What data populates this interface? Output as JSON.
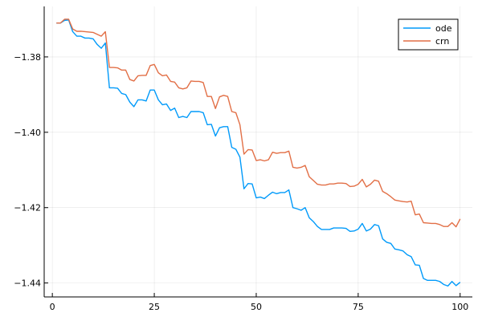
{
  "chart_data": {
    "type": "line",
    "title": "",
    "xlabel": "",
    "ylabel": "",
    "xlim": [
      -2,
      103
    ],
    "ylim": [
      -1.4437,
      -1.3666
    ],
    "grid": true,
    "legend_position": "top-right",
    "x_ticks": [
      {
        "value": 0,
        "label": "0"
      },
      {
        "value": 25,
        "label": "25"
      },
      {
        "value": 50,
        "label": "50"
      },
      {
        "value": 75,
        "label": "75"
      },
      {
        "value": 100,
        "label": "100"
      }
    ],
    "y_ticks": [
      {
        "value": -1.38,
        "label": "−1.38"
      },
      {
        "value": -1.4,
        "label": "−1.40"
      },
      {
        "value": -1.42,
        "label": "−1.42"
      },
      {
        "value": -1.44,
        "label": "−1.44"
      }
    ],
    "x": [
      1,
      2,
      3,
      4,
      5,
      6,
      7,
      8,
      9,
      10,
      11,
      12,
      13,
      14,
      15,
      16,
      17,
      18,
      19,
      20,
      21,
      22,
      23,
      24,
      25,
      26,
      27,
      28,
      29,
      30,
      31,
      32,
      33,
      34,
      35,
      36,
      37,
      38,
      39,
      40,
      41,
      42,
      43,
      44,
      45,
      46,
      47,
      48,
      49,
      50,
      51,
      52,
      53,
      54,
      55,
      56,
      57,
      58,
      59,
      60,
      61,
      62,
      63,
      64,
      65,
      66,
      67,
      68,
      69,
      70,
      71,
      72,
      73,
      74,
      75,
      76,
      77,
      78,
      79,
      80,
      81,
      82,
      83,
      84,
      85,
      86,
      87,
      88,
      89,
      90,
      91,
      92,
      93,
      94,
      95,
      96,
      97,
      98,
      99,
      100
    ],
    "series": [
      {
        "name": "ode",
        "color": "#009AFA",
        "values": [
          -1.371,
          -1.371,
          -1.3703,
          -1.3702,
          -1.3733,
          -1.3745,
          -1.3745,
          -1.375,
          -1.375,
          -1.3752,
          -1.3767,
          -1.3777,
          -1.3763,
          -1.3882,
          -1.3882,
          -1.3883,
          -1.3897,
          -1.39,
          -1.392,
          -1.3932,
          -1.3914,
          -1.3914,
          -1.3917,
          -1.3888,
          -1.3888,
          -1.3914,
          -1.3927,
          -1.3925,
          -1.3942,
          -1.3936,
          -1.3961,
          -1.3958,
          -1.3961,
          -1.3945,
          -1.3945,
          -1.3945,
          -1.3948,
          -1.398,
          -1.3979,
          -1.401,
          -1.3988,
          -1.3985,
          -1.3985,
          -1.404,
          -1.4045,
          -1.4066,
          -1.415,
          -1.4136,
          -1.4137,
          -1.4174,
          -1.4172,
          -1.4176,
          -1.4167,
          -1.4159,
          -1.4163,
          -1.416,
          -1.416,
          -1.4153,
          -1.42,
          -1.4203,
          -1.4207,
          -1.42,
          -1.4227,
          -1.4237,
          -1.425,
          -1.4258,
          -1.4258,
          -1.4258,
          -1.4254,
          -1.4254,
          -1.4254,
          -1.4255,
          -1.4263,
          -1.4262,
          -1.4257,
          -1.4242,
          -1.4262,
          -1.4257,
          -1.4245,
          -1.4248,
          -1.4283,
          -1.4292,
          -1.4295,
          -1.431,
          -1.4312,
          -1.4315,
          -1.4325,
          -1.433,
          -1.4352,
          -1.4353,
          -1.4388,
          -1.4393,
          -1.4393,
          -1.4393,
          -1.4396,
          -1.4404,
          -1.4408,
          -1.4396,
          -1.4407,
          -1.4398
        ]
      },
      {
        "name": "crn",
        "color": "#E26F46",
        "values": [
          -1.371,
          -1.371,
          -1.37,
          -1.37,
          -1.3726,
          -1.3732,
          -1.3732,
          -1.3733,
          -1.3734,
          -1.3735,
          -1.374,
          -1.3745,
          -1.3733,
          -1.3828,
          -1.3828,
          -1.3829,
          -1.3835,
          -1.3835,
          -1.386,
          -1.3864,
          -1.385,
          -1.3849,
          -1.3849,
          -1.3823,
          -1.382,
          -1.3842,
          -1.385,
          -1.3848,
          -1.3865,
          -1.3867,
          -1.3882,
          -1.3885,
          -1.3882,
          -1.3864,
          -1.3865,
          -1.3865,
          -1.3868,
          -1.3905,
          -1.3905,
          -1.3937,
          -1.3906,
          -1.3902,
          -1.3905,
          -1.3945,
          -1.3948,
          -1.398,
          -1.4058,
          -1.4046,
          -1.4047,
          -1.4075,
          -1.4073,
          -1.4076,
          -1.4073,
          -1.4053,
          -1.4056,
          -1.4054,
          -1.4054,
          -1.405,
          -1.4093,
          -1.4095,
          -1.4093,
          -1.4088,
          -1.4118,
          -1.4128,
          -1.4138,
          -1.414,
          -1.414,
          -1.4137,
          -1.4137,
          -1.4135,
          -1.4135,
          -1.4136,
          -1.4144,
          -1.4143,
          -1.4138,
          -1.4125,
          -1.4145,
          -1.4138,
          -1.4127,
          -1.413,
          -1.4157,
          -1.4163,
          -1.4171,
          -1.418,
          -1.4182,
          -1.4184,
          -1.4185,
          -1.4183,
          -1.4219,
          -1.4217,
          -1.424,
          -1.4241,
          -1.4242,
          -1.4242,
          -1.4245,
          -1.425,
          -1.425,
          -1.424,
          -1.4251,
          -1.423
        ]
      }
    ]
  }
}
